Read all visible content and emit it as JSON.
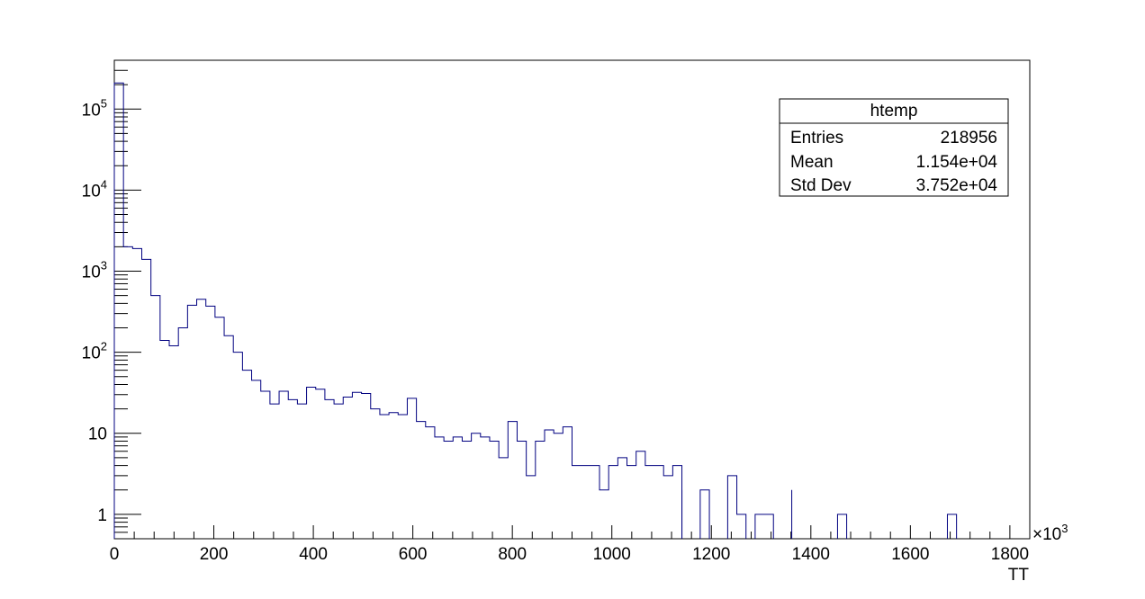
{
  "chart_data": {
    "type": "bar",
    "histogram": true,
    "scale": {
      "y": "log",
      "x": "linear"
    },
    "xlabel": "TT",
    "x_multiplier_label": "×10",
    "x_multiplier_exp": "3",
    "xlim": [
      0,
      1840
    ],
    "ylim": [
      0.5,
      400000
    ],
    "bin_width": 18.4,
    "x_ticks": [
      0,
      200,
      400,
      600,
      800,
      1000,
      1200,
      1400,
      1600,
      1800
    ],
    "x_tick_labels": [
      "0",
      "200",
      "400",
      "600",
      "800",
      "1000",
      "1200",
      "1400",
      "1600",
      "1800"
    ],
    "y_ticks": [
      {
        "value": 1,
        "base": "1",
        "exp": ""
      },
      {
        "value": 10,
        "base": "10",
        "exp": ""
      },
      {
        "value": 100,
        "base": "10",
        "exp": "2"
      },
      {
        "value": 1000,
        "base": "10",
        "exp": "3"
      },
      {
        "value": 10000,
        "base": "10",
        "exp": "4"
      },
      {
        "value": 100000,
        "base": "10",
        "exp": "5"
      }
    ],
    "line_color": "#000080",
    "counts": [
      210000,
      2000,
      1900,
      1400,
      500,
      140,
      120,
      200,
      380,
      450,
      370,
      270,
      160,
      100,
      60,
      45,
      33,
      23,
      33,
      26,
      23,
      37,
      35,
      26,
      23,
      28,
      32,
      31,
      20,
      17,
      18,
      17,
      27,
      14,
      12,
      9,
      8,
      9,
      8,
      10,
      9,
      8,
      5,
      14,
      8,
      3,
      8,
      11,
      10,
      12,
      4,
      4,
      4,
      2,
      4,
      5,
      4,
      6,
      4,
      4,
      3,
      4,
      0,
      0,
      2,
      0,
      0,
      3,
      1,
      0,
      1,
      1,
      0,
      0,
      0,
      0,
      0,
      0,
      0,
      1,
      0,
      0,
      0,
      0,
      0,
      0,
      0,
      0,
      0,
      0,
      0,
      0,
      0,
      0,
      0,
      0,
      0,
      0,
      0,
      0
    ],
    "spikes": [
      {
        "bin": 62,
        "value": 2
      },
      {
        "bin": 74,
        "value": 2
      }
    ],
    "isolated": [
      {
        "bin": 91,
        "value": 1
      }
    ],
    "stats": {
      "title": "htemp",
      "rows": [
        {
          "label": "Entries",
          "value": "218956"
        },
        {
          "label": "Mean",
          "value": "1.154e+04"
        },
        {
          "label": "Std Dev",
          "value": "3.752e+04"
        }
      ]
    }
  }
}
